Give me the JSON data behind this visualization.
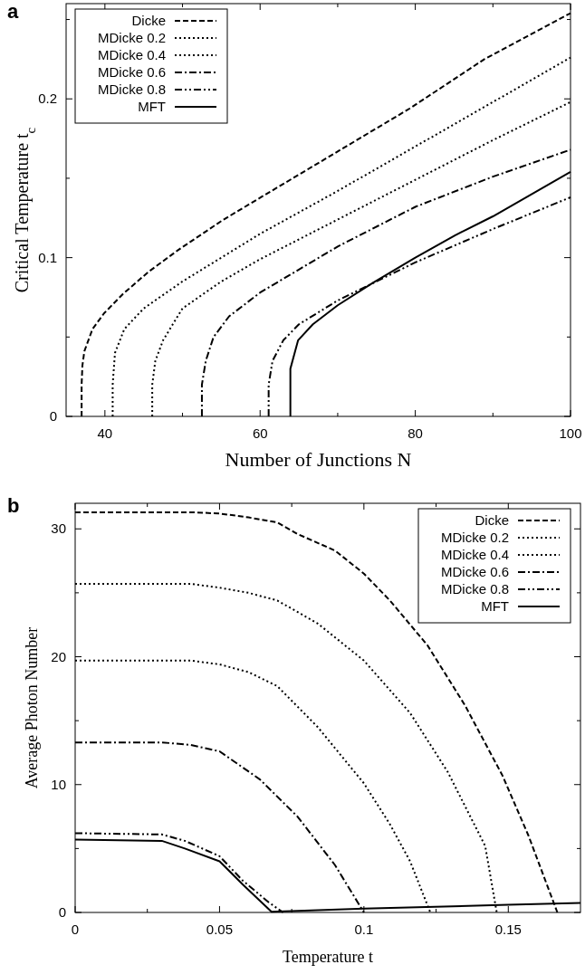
{
  "chart_data": [
    {
      "type": "line",
      "title": "a",
      "xlabel": "Number of Junctions N",
      "ylabel": "Critical Temperature t$_{c}$",
      "xlim": [
        35,
        100
      ],
      "ylim": [
        0,
        0.26
      ],
      "xticks": [
        40,
        {
          "value": 50,
          "label": null
        },
        60,
        {
          "value": 70,
          "label": null
        },
        80,
        {
          "value": 90,
          "label": null
        },
        100
      ],
      "yticks": [
        0,
        {
          "value": 0.05,
          "label": null
        },
        0.1,
        {
          "value": 0.15,
          "label": null
        },
        0.2,
        {
          "value": 0.25,
          "label": null
        }
      ],
      "grid": false,
      "legend": "top left",
      "marker": "none",
      "series": [
        {
          "name": "Dicke",
          "color": "#000000",
          "line_style": "dashed",
          "x": [
            37,
            37,
            37.1,
            37.35,
            38.4,
            39.9,
            42.3,
            45.6,
            49.5,
            55.3,
            60.1,
            69.7,
            79.3,
            88.9,
            100
          ],
          "values": [
            0,
            0.02,
            0.032,
            0.041,
            0.055,
            0.065,
            0.077,
            0.091,
            0.105,
            0.124,
            0.138,
            0.166,
            0.194,
            0.225,
            0.254
          ]
        },
        {
          "name": "MDicke 0.2",
          "color": "#000000",
          "line_style": "dotted",
          "x": [
            41,
            41,
            41.3,
            42.5,
            45,
            50,
            55,
            60,
            70,
            80,
            90,
            100
          ],
          "values": [
            0,
            0.02,
            0.04,
            0.055,
            0.068,
            0.085,
            0.1,
            0.115,
            0.142,
            0.17,
            0.198,
            0.226
          ]
        },
        {
          "name": "MDicke 0.4",
          "color": "#000000",
          "line_style": "dotted",
          "x": [
            46.1,
            46.1,
            46.5,
            47.5,
            50,
            55,
            60,
            70,
            80,
            90,
            100
          ],
          "values": [
            0,
            0.02,
            0.035,
            0.048,
            0.068,
            0.085,
            0.099,
            0.124,
            0.149,
            0.174,
            0.198
          ]
        },
        {
          "name": "MDicke 0.6",
          "color": "#000000",
          "line_style": "dashdot",
          "x": [
            52.5,
            52.5,
            53,
            54,
            56,
            60,
            70,
            80,
            90,
            100
          ],
          "values": [
            0,
            0.02,
            0.035,
            0.05,
            0.063,
            0.078,
            0.107,
            0.132,
            0.151,
            0.168
          ]
        },
        {
          "name": "MDicke 0.8",
          "color": "#000000",
          "line_style": "dashdotdot",
          "x": [
            61.1,
            61.1,
            61.6,
            63,
            65,
            70,
            75,
            80,
            90,
            100
          ],
          "values": [
            0,
            0.02,
            0.035,
            0.048,
            0.058,
            0.073,
            0.085,
            0.097,
            0.118,
            0.138
          ]
        },
        {
          "name": "MFT",
          "color": "#000000",
          "line_style": "solid",
          "x": [
            63.9,
            63.9,
            64.9,
            66.8,
            70,
            74.5,
            80,
            85.1,
            90,
            100
          ],
          "values": [
            0,
            0.03,
            0.048,
            0.058,
            0.07,
            0.084,
            0.1,
            0.114,
            0.126,
            0.154
          ]
        }
      ]
    },
    {
      "type": "line",
      "title": "b",
      "xlabel": "Temperature t",
      "ylabel": "Average Photon Number",
      "xlim": [
        0,
        0.175
      ],
      "ylim": [
        0,
        32
      ],
      "xticks": [
        0,
        {
          "value": 0.025,
          "label": null
        },
        0.05,
        {
          "value": 0.075,
          "label": null
        },
        0.1,
        {
          "value": 0.125,
          "label": null
        },
        0.15
      ],
      "yticks": [
        0,
        {
          "value": 5,
          "label": null
        },
        10,
        {
          "value": 15,
          "label": null
        },
        20,
        {
          "value": 25,
          "label": null
        },
        30
      ],
      "grid": false,
      "legend": "top right",
      "marker": "none",
      "series": [
        {
          "name": "Dicke",
          "color": "#000000",
          "line_style": "dashed",
          "x": [
            0,
            0.04,
            0.05,
            0.06,
            0.07,
            0.077,
            0.09,
            0.1,
            0.109,
            0.122,
            0.135,
            0.148,
            0.157,
            0.167
          ],
          "values": [
            31.3,
            31.3,
            31.2,
            30.9,
            30.5,
            29.6,
            28.3,
            26.5,
            24.4,
            20.9,
            16.2,
            10.7,
            6,
            0
          ]
        },
        {
          "name": "MDicke 0.2",
          "color": "#000000",
          "line_style": "dotted",
          "x": [
            0,
            0.04,
            0.05,
            0.06,
            0.07,
            0.084,
            0.1,
            0.116,
            0.129,
            0.142,
            0.146
          ],
          "values": [
            25.7,
            25.7,
            25.4,
            25,
            24.4,
            22.6,
            19.7,
            15.6,
            11,
            5.2,
            0
          ]
        },
        {
          "name": "MDicke 0.4",
          "color": "#000000",
          "line_style": "dotted",
          "x": [
            0,
            0.04,
            0.05,
            0.06,
            0.07,
            0.084,
            0.1,
            0.109,
            0.116,
            0.123
          ],
          "values": [
            19.7,
            19.7,
            19.4,
            18.8,
            17.7,
            14.5,
            10.1,
            6.9,
            4,
            0
          ]
        },
        {
          "name": "MDicke 0.6",
          "color": "#000000",
          "line_style": "dashdot",
          "x": [
            0,
            0.03,
            0.04,
            0.05,
            0.064,
            0.077,
            0.09,
            0.1
          ],
          "values": [
            13.3,
            13.3,
            13.1,
            12.6,
            10.4,
            7.5,
            3.7,
            0
          ]
        },
        {
          "name": "MDicke 0.8",
          "color": "#000000",
          "line_style": "dashdotdot",
          "x": [
            0,
            0.03,
            0.038,
            0.05,
            0.058,
            0.067,
            0.072
          ],
          "values": [
            6.2,
            6.1,
            5.6,
            4.4,
            2.5,
            0.8,
            0
          ]
        },
        {
          "name": "MFT",
          "color": "#000000",
          "line_style": "solid",
          "x": [
            0,
            0.03,
            0.038,
            0.05,
            0.058,
            0.068,
            0.1,
            0.15,
            0.175
          ],
          "values": [
            5.7,
            5.6,
            5,
            4,
            2.2,
            0.05,
            0.3,
            0.6,
            0.75
          ]
        }
      ]
    }
  ]
}
